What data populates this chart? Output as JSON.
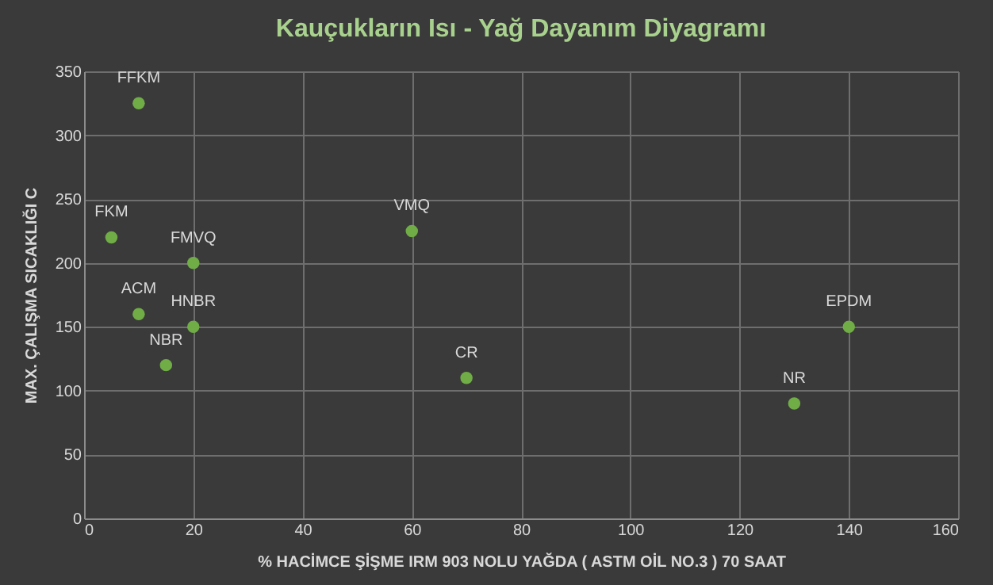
{
  "chart_data": {
    "type": "scatter",
    "title": "Kauçukların  Isı - Yağ Dayanım  Diyagramı",
    "xlabel": "% HACİMCE  ŞİŞME IRM 903 NOLU YAĞDA ( ASTM OİL NO.3 ) 70 SAAT",
    "ylabel": "MAX. ÇALIŞMA SICAKLIĞI C",
    "x": [
      10,
      5,
      20,
      10,
      20,
      15,
      60,
      70,
      130,
      140
    ],
    "series": [
      {
        "color": "#70ad47",
        "values": [
          325,
          220,
          200,
          160,
          150,
          120,
          225,
          110,
          90,
          150
        ]
      }
    ],
    "annotations": [
      {
        "text": "FFKM",
        "x": 10,
        "y": 325
      },
      {
        "text": "FKM",
        "x": 5,
        "y": 220
      },
      {
        "text": "FMVQ",
        "x": 20,
        "y": 200
      },
      {
        "text": "ACM",
        "x": 10,
        "y": 160
      },
      {
        "text": "HNBR",
        "x": 20,
        "y": 150
      },
      {
        "text": "NBR",
        "x": 15,
        "y": 120
      },
      {
        "text": "VMQ",
        "x": 60,
        "y": 225
      },
      {
        "text": "CR",
        "x": 70,
        "y": 110
      },
      {
        "text": "NR",
        "x": 130,
        "y": 90
      },
      {
        "text": "EPDM",
        "x": 140,
        "y": 150
      }
    ],
    "xlim": [
      0,
      160
    ],
    "xticks": [
      0,
      20,
      40,
      60,
      80,
      100,
      120,
      140,
      160
    ],
    "ylim": [
      0,
      350
    ],
    "yticks": [
      0,
      50,
      100,
      150,
      200,
      250,
      300,
      350
    ],
    "grid": true,
    "marker": "circle"
  }
}
